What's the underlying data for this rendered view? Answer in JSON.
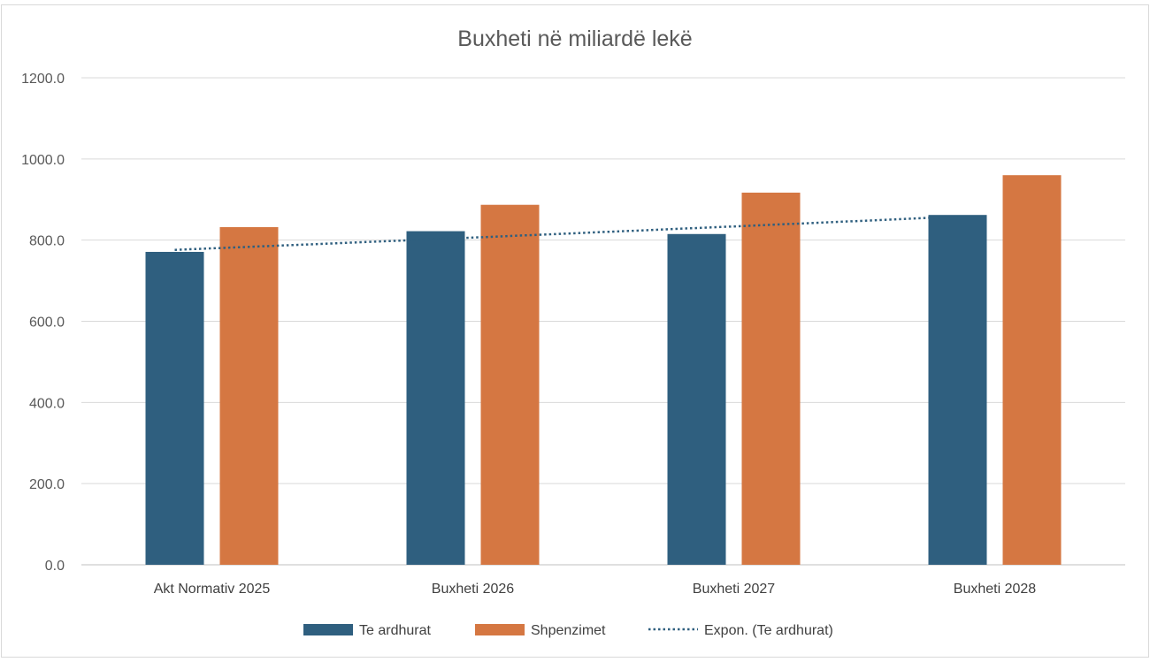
{
  "chart_data": {
    "type": "bar",
    "title": "Buxheti në miliardë lekë",
    "categories": [
      "Akt Normativ 2025",
      "Buxheti 2026",
      "Buxheti 2027",
      "Buxheti 2028"
    ],
    "series": [
      {
        "name": "Te ardhurat",
        "values": [
          771,
          822,
          815,
          862
        ],
        "color": "#2f5f7f"
      },
      {
        "name": "Shpenzimet",
        "values": [
          832,
          887,
          917,
          960
        ],
        "color": "#d57742"
      }
    ],
    "trendline": {
      "name": "Expon. (Te ardhurat)",
      "type": "exponential",
      "start": 776,
      "end": 858,
      "color": "#2f5f7f"
    },
    "ylim": [
      0,
      1200
    ],
    "yticks": [
      "0.0",
      "200.0",
      "400.0",
      "600.0",
      "800.0",
      "1000.0",
      "1200.0"
    ],
    "grid": true,
    "legend_position": "bottom",
    "xlabel": "",
    "ylabel": ""
  }
}
